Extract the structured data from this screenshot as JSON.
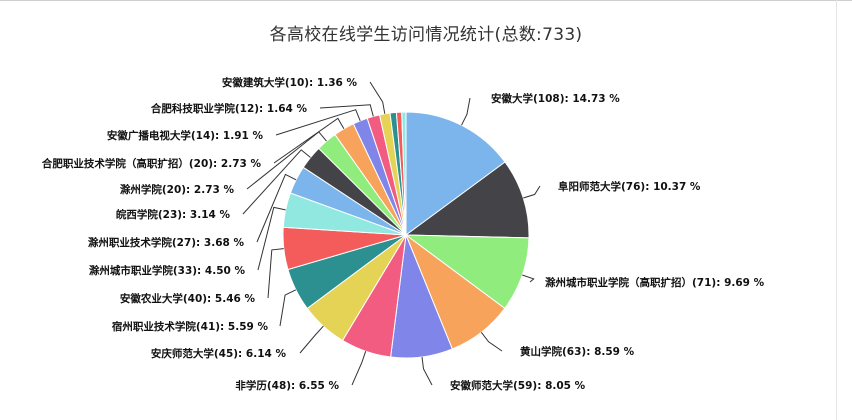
{
  "page": {
    "title": "各高校在线学生访问情况统计(总数:733)"
  },
  "chart_data": {
    "type": "pie",
    "title": "各高校在线学生访问情况统计(总数:733)",
    "total": 733,
    "start_angle_deg": 90,
    "direction": "clockwise",
    "label_format": "{name}({count}): {pct} %",
    "slices": [
      {
        "name": "安徽大学",
        "count": 108,
        "pct": 14.73,
        "label": "安徽大学(108): 14.73 %",
        "color": "#7cb5ec"
      },
      {
        "name": "阜阳师范大学",
        "count": 76,
        "pct": 10.37,
        "label": "阜阳师范大学(76): 10.37 %",
        "color": "#434348"
      },
      {
        "name": "滁州城市职业学院（高职扩招）",
        "count": 71,
        "pct": 9.69,
        "label": "滁州城市职业学院（高职扩招）(71): 9.69 %",
        "color": "#90ed7d"
      },
      {
        "name": "黄山学院",
        "count": 63,
        "pct": 8.59,
        "label": "黄山学院(63): 8.59 %",
        "color": "#f7a35c"
      },
      {
        "name": "安徽师范大学",
        "count": 59,
        "pct": 8.05,
        "label": "安徽师范大学(59): 8.05 %",
        "color": "#8085e9"
      },
      {
        "name": "非学历",
        "count": 48,
        "pct": 6.55,
        "label": "非学历(48): 6.55 %",
        "color": "#f15c80"
      },
      {
        "name": "安庆师范大学",
        "count": 45,
        "pct": 6.14,
        "label": "安庆师范大学(45): 6.14 %",
        "color": "#e4d354"
      },
      {
        "name": "宿州职业技术学院",
        "count": 41,
        "pct": 5.59,
        "label": "宿州职业技术学院(41): 5.59 %",
        "color": "#2b908f"
      },
      {
        "name": "安徽农业大学",
        "count": 40,
        "pct": 5.46,
        "label": "安徽农业大学(40): 5.46 %",
        "color": "#f45b5b"
      },
      {
        "name": "滁州城市职业学院",
        "count": 33,
        "pct": 4.5,
        "label": "滁州城市职业学院(33): 4.50 %",
        "color": "#91e8e1"
      },
      {
        "name": "滁州职业技术学院",
        "count": 27,
        "pct": 3.68,
        "label": "滁州职业技术学院(27): 3.68 %",
        "color": "#7cb5ec"
      },
      {
        "name": "皖西学院",
        "count": 23,
        "pct": 3.14,
        "label": "皖西学院(23): 3.14 %",
        "color": "#434348"
      },
      {
        "name": "滁州学院",
        "count": 20,
        "pct": 2.73,
        "label": "滁州学院(20): 2.73 %",
        "color": "#90ed7d"
      },
      {
        "name": "合肥职业技术学院（高职扩招）",
        "count": 20,
        "pct": 2.73,
        "label": "合肥职业技术学院（高职扩招）(20): 2.73 %",
        "color": "#f7a35c"
      },
      {
        "name": "安徽广播电视大学",
        "count": 14,
        "pct": 1.91,
        "label": "安徽广播电视大学(14): 1.91 %",
        "color": "#8085e9"
      },
      {
        "name": "合肥科技职业学院",
        "count": 12,
        "pct": 1.64,
        "label": "合肥科技职业学院(12): 1.64 %",
        "color": "#f15c80"
      },
      {
        "name": "安徽建筑大学",
        "count": 10,
        "pct": 1.36,
        "label": "安徽建筑大学(10): 1.36 %",
        "color": "#e4d354"
      },
      {
        "name": "",
        "count": null,
        "pct": 0.82,
        "label": "",
        "color": "#2b908f"
      },
      {
        "name": "",
        "count": null,
        "pct": 0.68,
        "label": "",
        "color": "#f45b5b"
      },
      {
        "name": "",
        "count": null,
        "pct": 0.55,
        "label": "",
        "color": "#91e8e1"
      }
    ]
  }
}
